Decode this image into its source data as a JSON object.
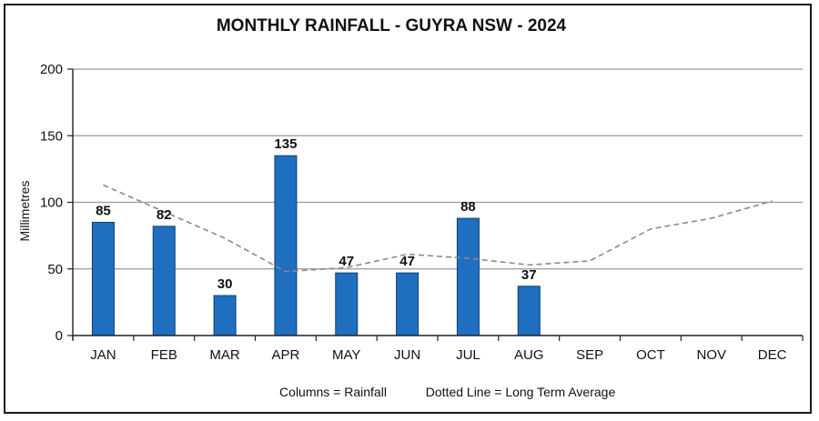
{
  "chart_data": {
    "type": "bar",
    "title": "MONTHLY RAINFALL - GUYRA NSW - 2024",
    "ylabel": "Millimetres",
    "xlabel": "",
    "ylim": [
      0,
      200
    ],
    "yticks": [
      0,
      50,
      100,
      150,
      200
    ],
    "grid": true,
    "categories": [
      "JAN",
      "FEB",
      "MAR",
      "APR",
      "MAY",
      "JUN",
      "JUL",
      "AUG",
      "SEP",
      "OCT",
      "NOV",
      "DEC"
    ],
    "series": [
      {
        "type": "bar",
        "values": [
          85,
          82,
          30,
          135,
          47,
          47,
          88,
          37,
          null,
          null,
          null,
          null
        ],
        "color": "#1f6fc0"
      },
      {
        "type": "line",
        "style": "dashed",
        "values": [
          113,
          93,
          73,
          48,
          51,
          61,
          58,
          53,
          56,
          80,
          88,
          101
        ],
        "color": "#8a8a8a"
      }
    ],
    "footnote": {
      "columns": "Columns = Rainfall",
      "line": "Dotted Line = Long Term Average"
    }
  }
}
